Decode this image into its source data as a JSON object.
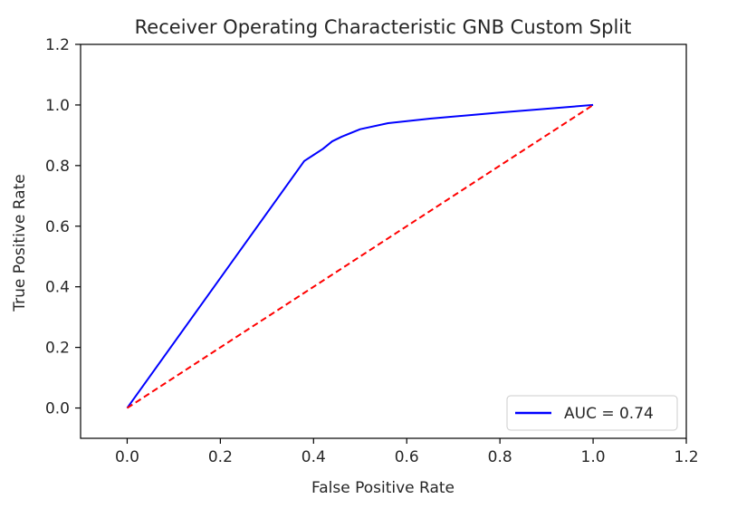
{
  "chart_data": {
    "type": "line",
    "title": "Receiver Operating Characteristic GNB Custom Split",
    "xlabel": "False Positive Rate",
    "ylabel": "True Positive Rate",
    "xlim": [
      -0.1,
      1.2
    ],
    "ylim": [
      -0.1,
      1.2
    ],
    "xticks": [
      0.0,
      0.2,
      0.4,
      0.6,
      0.8,
      1.0,
      1.2
    ],
    "xtick_labels": [
      "0.0",
      "0.2",
      "0.4",
      "0.6",
      "0.8",
      "1.0",
      "1.2"
    ],
    "yticks": [
      0.0,
      0.2,
      0.4,
      0.6,
      0.8,
      1.0,
      1.2
    ],
    "ytick_labels": [
      "0.0",
      "0.2",
      "0.4",
      "0.6",
      "0.8",
      "1.0",
      "1.2"
    ],
    "grid": false,
    "legend_position": "lower-right",
    "series": [
      {
        "name": "AUC = 0.74",
        "color": "#0000ff",
        "style": "solid",
        "x": [
          0.0,
          0.38,
          0.4,
          0.42,
          0.44,
          0.46,
          0.5,
          0.56,
          0.65,
          0.8,
          1.0
        ],
        "y": [
          0.0,
          0.815,
          0.835,
          0.855,
          0.88,
          0.895,
          0.92,
          0.94,
          0.955,
          0.975,
          1.0
        ]
      },
      {
        "color": "#ff0000",
        "style": "dashed",
        "x": [
          0.0,
          1.0
        ],
        "y": [
          0.0,
          1.0
        ]
      }
    ]
  }
}
